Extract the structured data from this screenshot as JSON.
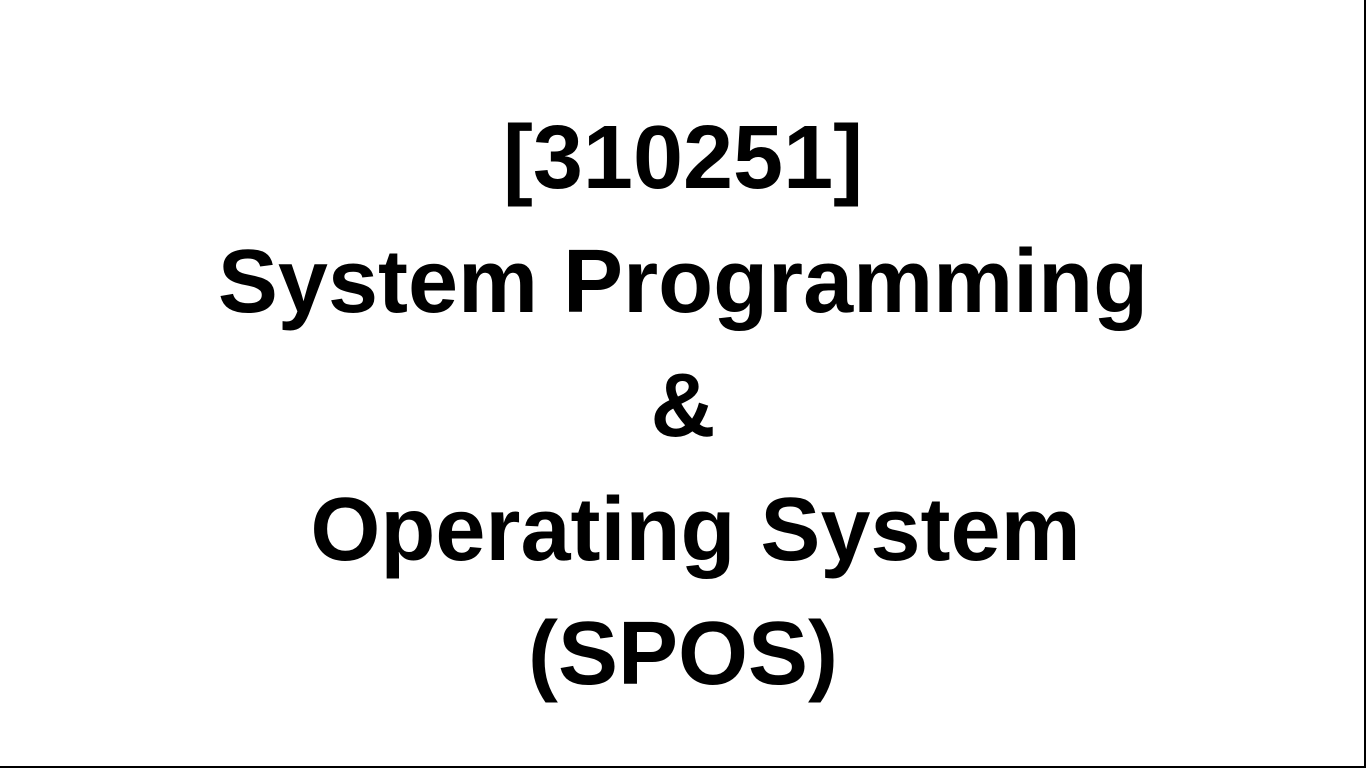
{
  "slide": {
    "title_lines": [
      "[310251]",
      "System Programming",
      "&",
      " Operating System",
      "(SPOS)"
    ]
  }
}
